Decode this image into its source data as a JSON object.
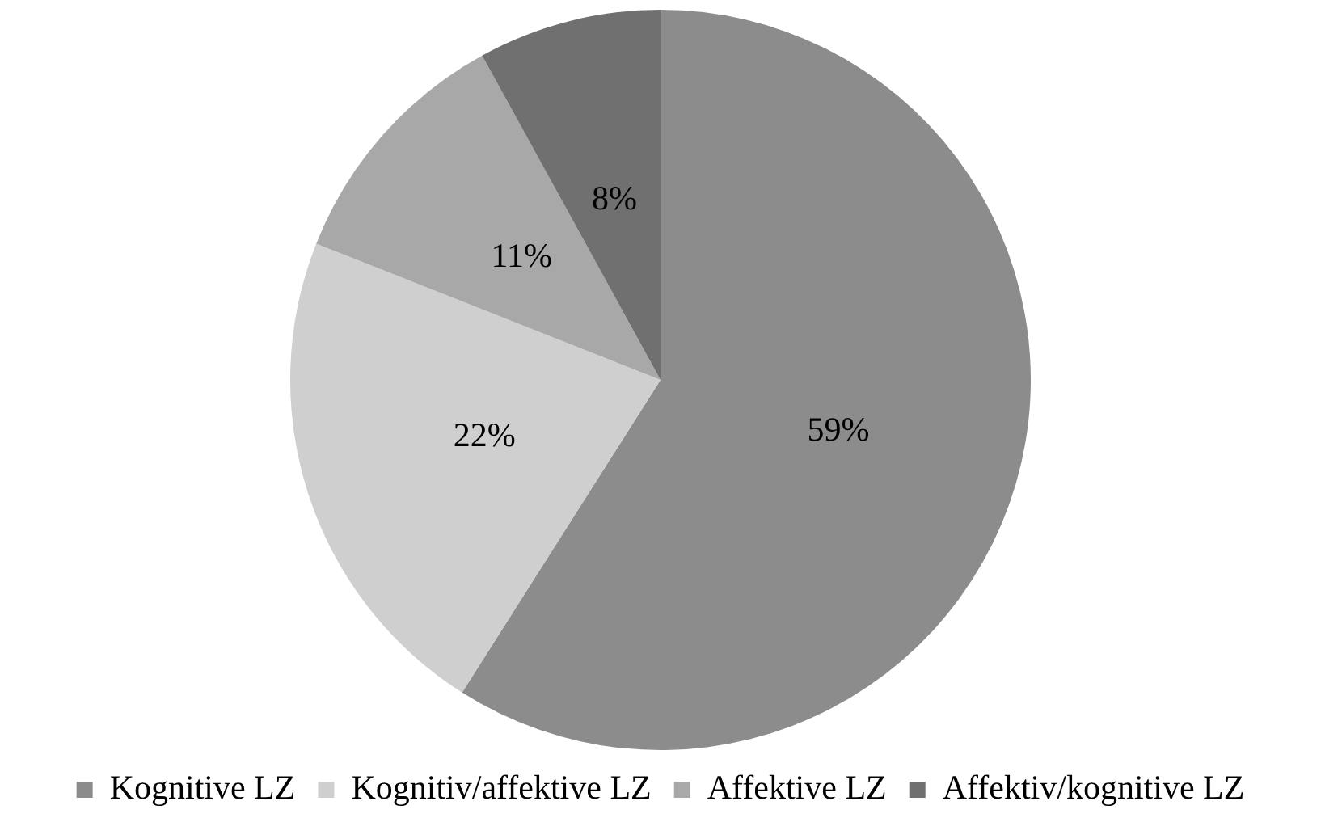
{
  "chart_data": {
    "type": "pie",
    "categories": [
      "Kognitive LZ",
      "Kognitiv/affektive LZ",
      "Affektive LZ",
      "Affektiv/kognitive LZ"
    ],
    "values": [
      59,
      22,
      11,
      8
    ],
    "colors": [
      "#8c8c8c",
      "#cfcfcf",
      "#a8a8a8",
      "#707070"
    ],
    "value_labels": [
      "59%",
      "22%",
      "11%",
      "8%"
    ],
    "legend": "bottom"
  }
}
